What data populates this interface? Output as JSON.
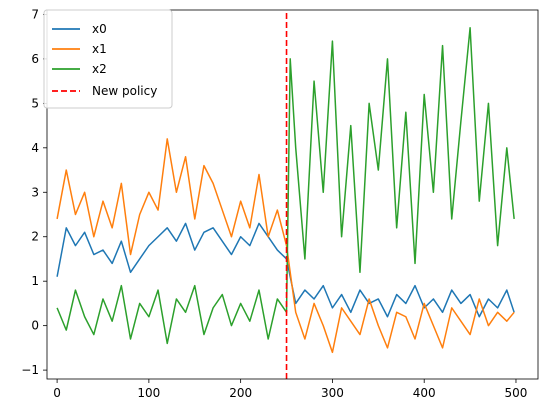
{
  "chart_data": {
    "type": "line",
    "title": "",
    "xlabel": "",
    "ylabel": "",
    "xlim": [
      -11,
      524
    ],
    "ylim": [
      -1.2,
      7.1
    ],
    "xticks": [
      0,
      100,
      200,
      300,
      400,
      500
    ],
    "yticks": [
      -1,
      0,
      1,
      2,
      3,
      4,
      5,
      6,
      7
    ],
    "grid": false,
    "legend_position": "top-left",
    "x_step": 10,
    "series": [
      {
        "name": "x0",
        "color": "#1f77b4",
        "style": "solid",
        "x": [
          0,
          10,
          20,
          30,
          40,
          50,
          60,
          70,
          80,
          90,
          100,
          110,
          120,
          130,
          140,
          150,
          160,
          170,
          180,
          190,
          200,
          210,
          220,
          230,
          240,
          250,
          260,
          270,
          280,
          290,
          300,
          310,
          320,
          330,
          340,
          350,
          360,
          370,
          380,
          390,
          400,
          410,
          420,
          430,
          440,
          450,
          460,
          470,
          480,
          490,
          498
        ],
        "y": [
          1.1,
          2.2,
          1.8,
          2.1,
          1.6,
          1.7,
          1.4,
          1.9,
          1.2,
          1.5,
          1.8,
          2.0,
          2.2,
          1.9,
          2.3,
          1.7,
          2.1,
          2.2,
          1.9,
          1.6,
          2.0,
          1.8,
          2.3,
          2.0,
          1.7,
          1.5,
          0.5,
          0.8,
          0.6,
          0.9,
          0.4,
          0.7,
          0.3,
          0.8,
          0.5,
          0.6,
          0.2,
          0.7,
          0.5,
          0.9,
          0.4,
          0.6,
          0.3,
          0.8,
          0.5,
          0.7,
          0.2,
          0.6,
          0.4,
          0.8,
          0.3
        ]
      },
      {
        "name": "x1",
        "color": "#ff7f0e",
        "style": "solid",
        "x": [
          0,
          10,
          20,
          30,
          40,
          50,
          60,
          70,
          80,
          90,
          100,
          110,
          120,
          130,
          140,
          150,
          160,
          170,
          180,
          190,
          200,
          210,
          220,
          230,
          240,
          250,
          260,
          270,
          280,
          290,
          300,
          310,
          320,
          330,
          340,
          350,
          360,
          370,
          380,
          390,
          400,
          410,
          420,
          430,
          440,
          450,
          460,
          470,
          480,
          490,
          498
        ],
        "y": [
          2.4,
          3.5,
          2.5,
          3.0,
          2.0,
          2.8,
          2.2,
          3.2,
          1.6,
          2.5,
          3.0,
          2.6,
          4.2,
          3.0,
          3.8,
          2.4,
          3.6,
          3.2,
          2.6,
          2.0,
          2.8,
          2.2,
          3.4,
          2.0,
          2.6,
          1.8,
          0.3,
          -0.3,
          0.5,
          0.0,
          -0.6,
          0.4,
          0.1,
          -0.2,
          0.6,
          0.0,
          -0.5,
          0.3,
          0.2,
          -0.3,
          0.5,
          0.0,
          -0.5,
          0.4,
          0.1,
          -0.2,
          0.6,
          0.0,
          0.3,
          0.1,
          0.3
        ]
      },
      {
        "name": "x2",
        "color": "#2ca02c",
        "style": "solid",
        "x": [
          0,
          10,
          20,
          30,
          40,
          50,
          60,
          70,
          80,
          90,
          100,
          110,
          120,
          130,
          140,
          150,
          160,
          170,
          180,
          190,
          200,
          210,
          220,
          230,
          240,
          250,
          254,
          260,
          270,
          280,
          290,
          300,
          310,
          320,
          330,
          340,
          350,
          360,
          370,
          380,
          390,
          400,
          410,
          420,
          430,
          440,
          450,
          460,
          470,
          480,
          490,
          498
        ],
        "y": [
          0.4,
          -0.1,
          0.8,
          0.2,
          -0.2,
          0.6,
          0.1,
          0.9,
          -0.3,
          0.5,
          0.2,
          0.8,
          -0.4,
          0.6,
          0.3,
          0.9,
          -0.2,
          0.4,
          0.7,
          0.0,
          0.5,
          0.1,
          0.8,
          -0.3,
          0.6,
          0.3,
          6.0,
          4.0,
          1.5,
          5.5,
          3.0,
          6.4,
          2.0,
          4.5,
          1.2,
          5.0,
          3.5,
          6.0,
          2.2,
          4.8,
          1.4,
          5.2,
          3.0,
          6.3,
          2.4,
          4.6,
          6.7,
          2.8,
          5.0,
          1.8,
          4.0,
          2.4
        ]
      },
      {
        "name": "New policy",
        "color": "#ff0000",
        "style": "dashed",
        "x": [
          250,
          250
        ],
        "y": [
          -1.2,
          7.1
        ]
      }
    ]
  }
}
